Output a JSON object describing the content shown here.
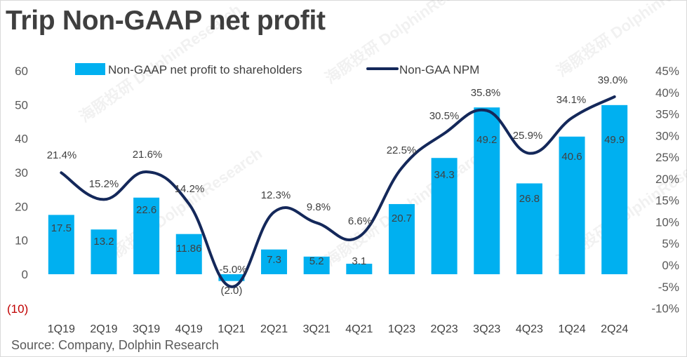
{
  "title": "Trip Non-GAAP net profit",
  "source": "Source: Company, Dolphin Research",
  "colors": {
    "bar": "#00b0f0",
    "line": "#14285a",
    "negative_label": "#c00000"
  },
  "chart_data": {
    "type": "bar",
    "categories": [
      "1Q19",
      "2Q19",
      "3Q19",
      "4Q19",
      "1Q21",
      "2Q21",
      "3Q21",
      "4Q21",
      "1Q23",
      "2Q23",
      "3Q23",
      "4Q23",
      "1Q24",
      "2Q24"
    ],
    "series": [
      {
        "name": "Non-GAAP net profit to shareholders",
        "type": "bar",
        "axis": "left",
        "values": [
          17.5,
          13.2,
          22.6,
          11.86,
          -2.0,
          7.3,
          5.2,
          3.1,
          20.7,
          34.3,
          49.2,
          26.8,
          40.6,
          49.9
        ],
        "labels": [
          "17.5",
          "13.2",
          "22.6",
          "11.86",
          "(2.0)",
          "7.3",
          "5.2",
          "3.1",
          "20.7",
          "34.3",
          "49.2",
          "26.8",
          "40.6",
          "49.9"
        ]
      },
      {
        "name": "Non-GAA NPM",
        "type": "line",
        "axis": "right",
        "values": [
          21.4,
          15.2,
          21.6,
          14.2,
          -5.0,
          12.3,
          9.8,
          6.6,
          22.5,
          30.5,
          35.8,
          25.9,
          34.1,
          39.0
        ],
        "labels": [
          "21.4%",
          "15.2%",
          "21.6%",
          "14.2%",
          "-5.0%",
          "12.3%",
          "9.8%",
          "6.6%",
          "22.5%",
          "30.5%",
          "35.8%",
          "25.9%",
          "34.1%",
          "39.0%"
        ]
      }
    ],
    "left_axis": {
      "ylim": [
        -10,
        60
      ],
      "ticks": [
        "(10)",
        "0",
        "10",
        "20",
        "30",
        "40",
        "50",
        "60"
      ]
    },
    "right_axis": {
      "ylim": [
        -10,
        45
      ],
      "ticks": [
        "-10%",
        "-5%",
        "0%",
        "5%",
        "10%",
        "15%",
        "20%",
        "25%",
        "30%",
        "35%",
        "40%",
        "45%"
      ]
    },
    "legend_position": "top-center",
    "grid": false
  }
}
